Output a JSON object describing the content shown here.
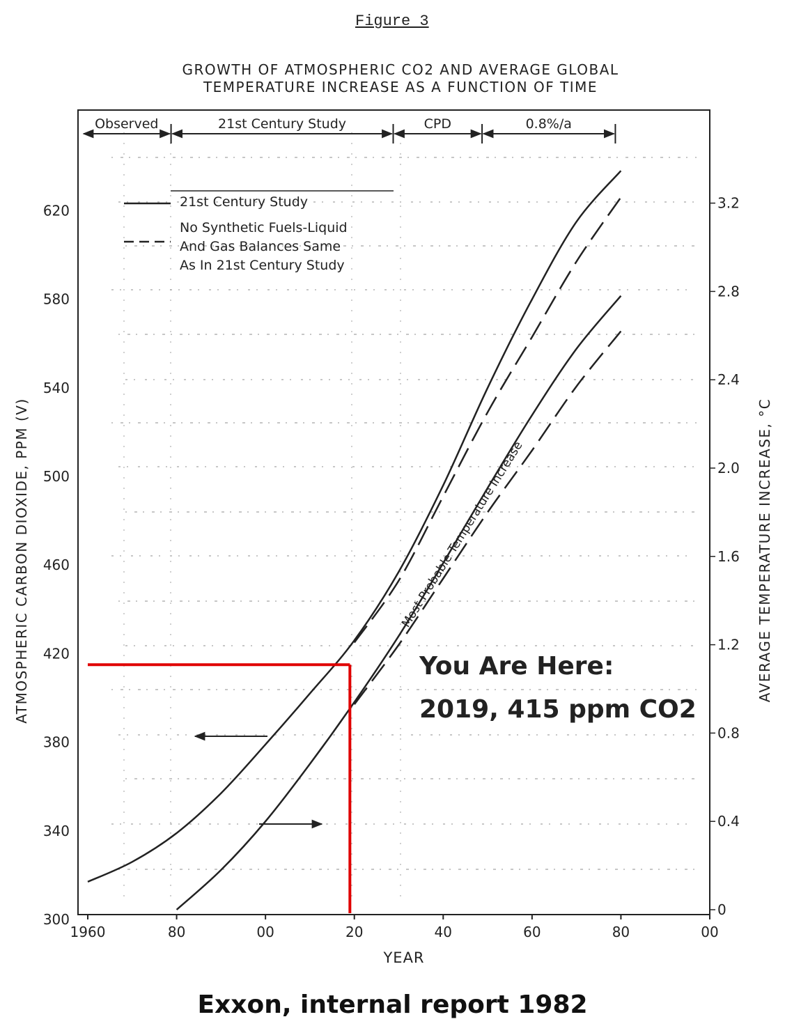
{
  "figure_label": "Figure 3",
  "title_lines": [
    "GROWTH OF ATMOSPHERIC CO2 AND AVERAGE GLOBAL",
    "TEMPERATURE INCREASE AS A FUNCTION OF TIME"
  ],
  "footer": "Exxon, internal report 1982",
  "colors": {
    "ink": "#222222",
    "highlight": "#e00000",
    "background": "#ffffff"
  },
  "chart_data": {
    "type": "line",
    "xlabel": "YEAR",
    "ylabel_left": "ATMOSPHERIC CARBON DIOXIDE, PPM (V)",
    "ylabel_right": "AVERAGE TEMPERATURE INCREASE, °C",
    "x_ticks": [
      "1960",
      "80",
      "00",
      "20",
      "40",
      "60",
      "80",
      "00"
    ],
    "xlim": [
      1960,
      2100
    ],
    "y_left_ticks": [
      "300",
      "340",
      "380",
      "420",
      "460",
      "500",
      "540",
      "580",
      "620"
    ],
    "ylim_left": [
      300,
      630
    ],
    "y_right_ticks": [
      "0",
      "0.4",
      "0.8",
      "1.2",
      "1.6",
      "2.0",
      "2.4",
      "2.8",
      "3.2"
    ],
    "ylim_right": [
      0,
      3.3
    ],
    "periods": [
      {
        "label": "Observed",
        "from": 1960,
        "to": 1980
      },
      {
        "label": "21st Century Study",
        "from": 1980,
        "to": 2030
      },
      {
        "label": "CPD",
        "from": 2030,
        "to": 2050
      },
      {
        "label": "0.8%/a",
        "from": 2050,
        "to": 2080
      }
    ],
    "legend": [
      {
        "style": "solid",
        "lines": [
          "21st Century Study"
        ]
      },
      {
        "style": "dashed",
        "lines": [
          "No Synthetic Fuels-Liquid",
          "And Gas Balances Same",
          "As In 21st Century Study"
        ]
      }
    ],
    "series": [
      {
        "name": "21st Century Study",
        "axis": "left",
        "style": "solid",
        "x": [
          1960,
          1970,
          1980,
          1990,
          2000,
          2010,
          2020,
          2030,
          2040,
          2050,
          2060,
          2070,
          2080
        ],
        "y": [
          317,
          326,
          339,
          357,
          379,
          402,
          426,
          457,
          496,
          540,
          580,
          615,
          638
        ]
      },
      {
        "name": "No Synthetic Fuels-Liquid And Gas Balances Same As In 21st Century Study",
        "axis": "left",
        "style": "dashed",
        "x": [
          2020,
          2030,
          2040,
          2050,
          2060,
          2070,
          2080
        ],
        "y": [
          425,
          453,
          491,
          529,
          563,
          597,
          626
        ]
      },
      {
        "name": "Most Probable Temperature Increase",
        "axis": "right",
        "style": "solid",
        "x": [
          1980,
          1990,
          2000,
          2010,
          2020,
          2030,
          2040,
          2050,
          2060,
          2070,
          2080
        ],
        "y": [
          0,
          0.18,
          0.4,
          0.66,
          0.94,
          1.24,
          1.57,
          1.91,
          2.24,
          2.54,
          2.78
        ]
      },
      {
        "name": "No Synthetic Fuels-Liquid And Gas Balances Same As In 21st Century Study",
        "axis": "right",
        "style": "dashed",
        "x": [
          2020,
          2030,
          2040,
          2050,
          2060,
          2070,
          2080
        ],
        "y": [
          0.93,
          1.2,
          1.5,
          1.8,
          2.08,
          2.37,
          2.62
        ]
      }
    ],
    "annotations": {
      "curve_label": "Most Probable Temperature Increase",
      "you_are_here": [
        "You Are Here:",
        "2019, 415 ppm CO2"
      ],
      "marker": {
        "year": 2019,
        "ppm": 415
      }
    }
  }
}
